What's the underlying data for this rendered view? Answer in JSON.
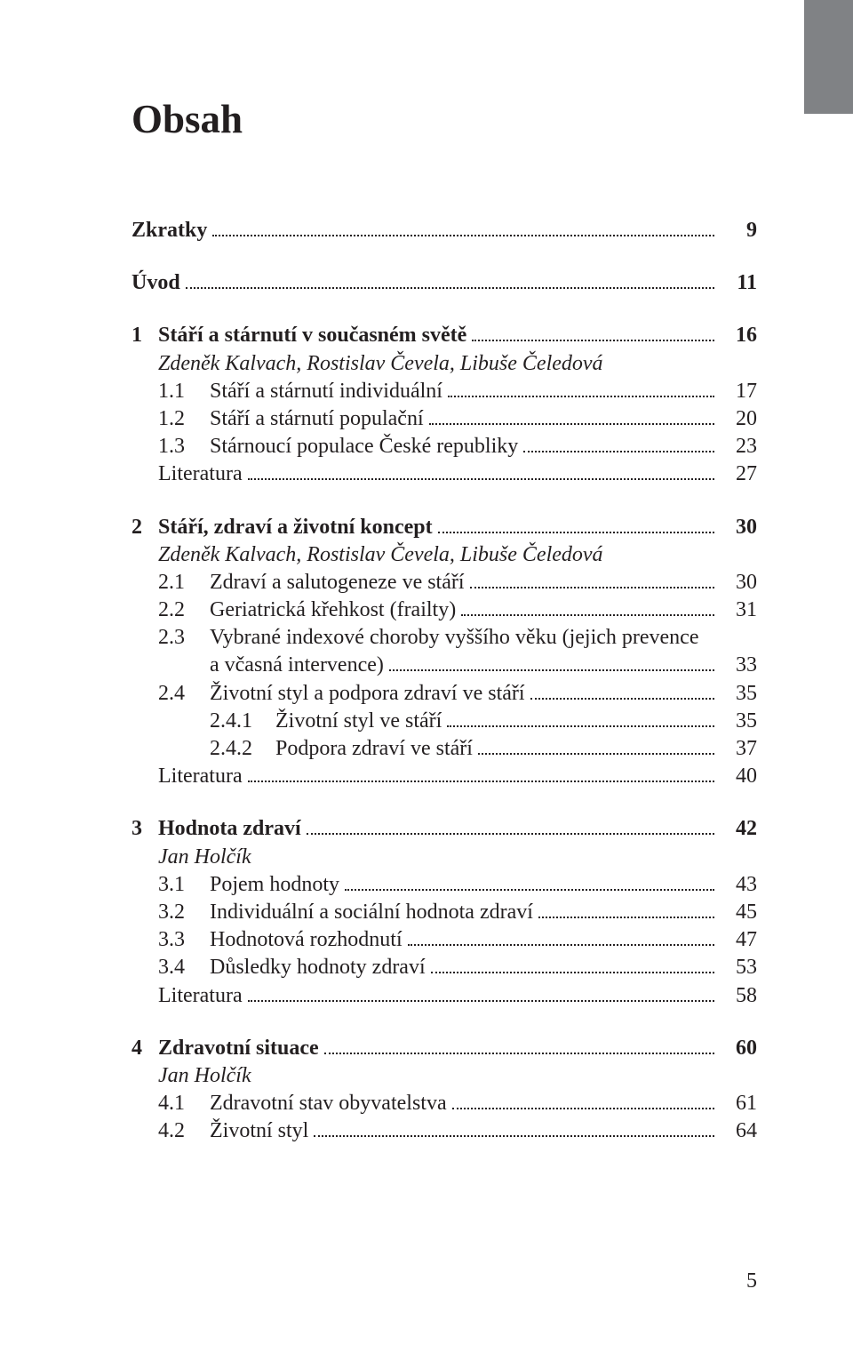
{
  "page_title": "Obsah",
  "footer_page": "5",
  "entries": [
    {
      "type": "block-start"
    },
    {
      "type": "top",
      "title": "Zkratky",
      "page": "9",
      "bold": true
    },
    {
      "type": "block-end"
    },
    {
      "type": "block-start"
    },
    {
      "type": "top",
      "title": "Úvod",
      "page": "11",
      "bold": true
    },
    {
      "type": "block-end"
    },
    {
      "type": "block-start"
    },
    {
      "type": "chapter",
      "num": "1",
      "title": "Stáří a stárnutí v současném světě",
      "page": "16"
    },
    {
      "type": "author",
      "title": "Zdeněk Kalvach, Rostislav Čevela, Libuše Čeledová"
    },
    {
      "type": "section",
      "num": "1.1",
      "title": "Stáří a stárnutí individuální",
      "page": "17"
    },
    {
      "type": "section",
      "num": "1.2",
      "title": "Stáří a stárnutí populační",
      "page": "20"
    },
    {
      "type": "section",
      "num": "1.3",
      "title": "Stárnoucí populace České republiky",
      "page": "23"
    },
    {
      "type": "lit",
      "title": "Literatura",
      "page": "27"
    },
    {
      "type": "block-end"
    },
    {
      "type": "block-start"
    },
    {
      "type": "chapter",
      "num": "2",
      "title": "Stáří, zdraví a životní koncept",
      "page": "30"
    },
    {
      "type": "author",
      "title": "Zdeněk Kalvach, Rostislav Čevela, Libuše Čeledová"
    },
    {
      "type": "section",
      "num": "2.1",
      "title": "Zdraví a salutogeneze ve stáří",
      "page": "30"
    },
    {
      "type": "section",
      "num": "2.2",
      "title": "Geriatrická křehkost (frailty)",
      "page": "31"
    },
    {
      "type": "section-wrap1",
      "num": "2.3",
      "title": "Vybrané indexové choroby vyššího věku (jejich prevence"
    },
    {
      "type": "section-wrap2",
      "title": "a včasná intervence)",
      "page": "33"
    },
    {
      "type": "section",
      "num": "2.4",
      "title": "Životní styl a podpora zdraví ve stáří",
      "page": "35"
    },
    {
      "type": "subsection",
      "num": "2.4.1",
      "title": "Životní styl ve stáří",
      "page": "35"
    },
    {
      "type": "subsection",
      "num": "2.4.2",
      "title": "Podpora zdraví ve stáří",
      "page": "37"
    },
    {
      "type": "lit",
      "title": "Literatura",
      "page": "40"
    },
    {
      "type": "block-end"
    },
    {
      "type": "block-start"
    },
    {
      "type": "chapter",
      "num": "3",
      "title": "Hodnota zdraví",
      "page": "42"
    },
    {
      "type": "author",
      "title": "Jan Holčík"
    },
    {
      "type": "section",
      "num": "3.1",
      "title": "Pojem hodnoty",
      "page": "43"
    },
    {
      "type": "section",
      "num": "3.2",
      "title": "Individuální a sociální hodnota zdraví",
      "page": "45"
    },
    {
      "type": "section",
      "num": "3.3",
      "title": "Hodnotová rozhodnutí",
      "page": "47"
    },
    {
      "type": "section",
      "num": "3.4",
      "title": "Důsledky hodnoty zdraví",
      "page": "53"
    },
    {
      "type": "lit",
      "title": "Literatura",
      "page": "58"
    },
    {
      "type": "block-end"
    },
    {
      "type": "block-start"
    },
    {
      "type": "chapter",
      "num": "4",
      "title": "Zdravotní situace",
      "page": "60"
    },
    {
      "type": "author",
      "title": "Jan Holčík"
    },
    {
      "type": "section",
      "num": "4.1",
      "title": "Zdravotní stav obyvatelstva",
      "page": "61"
    },
    {
      "type": "section",
      "num": "4.2",
      "title": "Životní styl",
      "page": "64"
    },
    {
      "type": "block-end"
    }
  ]
}
